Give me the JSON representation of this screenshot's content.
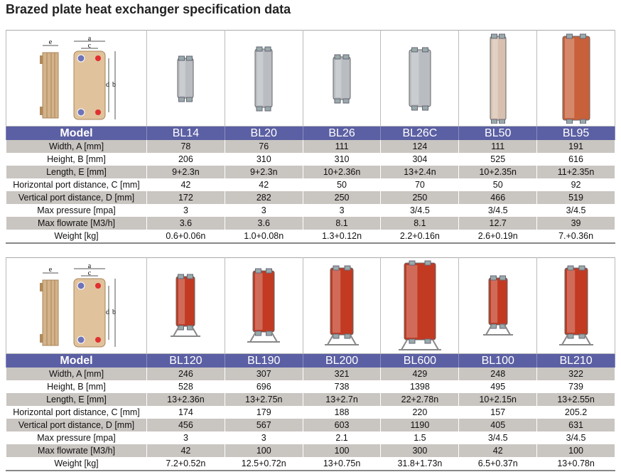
{
  "title": "Brazed plate heat exchanger specification data",
  "diagram_labels": {
    "a": "a",
    "b": "b",
    "c": "c",
    "d": "d",
    "e": "e"
  },
  "tables": [
    {
      "header_label": "Model",
      "models": [
        "BL14",
        "BL20",
        "BL26",
        "BL26C",
        "BL50",
        "BL95"
      ],
      "rows": [
        {
          "label": "Width, A [mm]",
          "values": [
            "78",
            "76",
            "111",
            "124",
            "111",
            "191"
          ]
        },
        {
          "label": "Height, B [mm]",
          "values": [
            "206",
            "310",
            "310",
            "304",
            "525",
            "616"
          ]
        },
        {
          "label": "Length, E [mm]",
          "values": [
            "9+2.3n",
            "9+2.3n",
            "10+2.36n",
            "13+2.4n",
            "10+2.35n",
            "11+2.35n"
          ]
        },
        {
          "label": "Horizontal port distance, C [mm]",
          "values": [
            "42",
            "42",
            "50",
            "70",
            "50",
            "92"
          ]
        },
        {
          "label": "Vertical port distance, D [mm]",
          "values": [
            "172",
            "282",
            "250",
            "250",
            "466",
            "519"
          ]
        },
        {
          "label": "Max pressure [mpa]",
          "values": [
            "3",
            "3",
            "3",
            "3/4.5",
            "3/4.5",
            "3/4.5"
          ]
        },
        {
          "label": "Max flowrate [M3/h]",
          "values": [
            "3.6",
            "3.6",
            "8.1",
            "8.1",
            "12.7",
            "39"
          ]
        },
        {
          "label": "Weight [kg]",
          "values": [
            "0.6+0.06n",
            "1.0+0.08n",
            "1.3+0.12n",
            "2.2+0.16n",
            "2.6+0.19n",
            "7.+0.36n"
          ]
        }
      ]
    },
    {
      "header_label": "Model",
      "models": [
        "BL120",
        "BL190",
        "BL200",
        "BL600",
        "BL100",
        "BL210"
      ],
      "rows": [
        {
          "label": "Width, A [mm]",
          "values": [
            "246",
            "307",
            "321",
            "429",
            "248",
            "322"
          ]
        },
        {
          "label": "Height, B [mm]",
          "values": [
            "528",
            "696",
            "738",
            "1398",
            "495",
            "739"
          ]
        },
        {
          "label": "Length, E [mm]",
          "values": [
            "13+2.36n",
            "13+2.75n",
            "13+2.7n",
            "22+2.78n",
            "10+2.15n",
            "13+2.55n"
          ]
        },
        {
          "label": "Horizontal port distance, C [mm]",
          "values": [
            "174",
            "179",
            "188",
            "220",
            "157",
            "205.2"
          ]
        },
        {
          "label": "Vertical port distance, D [mm]",
          "values": [
            "456",
            "567",
            "603",
            "1190",
            "405",
            "631"
          ]
        },
        {
          "label": "Max pressure [mpa]",
          "values": [
            "3",
            "3",
            "2.1",
            "1.5",
            "3/4.5",
            "3/4.5"
          ]
        },
        {
          "label": "Max flowrate [M3/h]",
          "values": [
            "42",
            "100",
            "100",
            "300",
            "42",
            "100"
          ]
        },
        {
          "label": "Weight [kg]",
          "values": [
            "7.2+0.52n",
            "12.5+0.72n",
            "13+0.75n",
            "31.8+1.73n",
            "6.5+0.37n",
            "13+0.78n"
          ]
        }
      ]
    }
  ],
  "colors": {
    "header": "#5b5fa3",
    "row_alt": "#c9c5c1",
    "plate_silver": "#b9bcc0",
    "plate_copper": "#c8603a",
    "plate_red": "#c23a22"
  }
}
